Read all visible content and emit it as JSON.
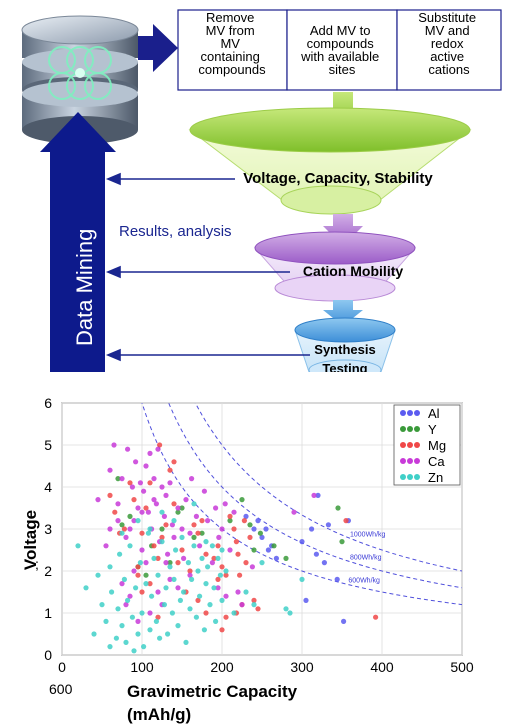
{
  "workflow": {
    "steps": [
      {
        "lines": [
          "Remove",
          "MV from",
          "MV",
          "containing",
          "compounds"
        ]
      },
      {
        "lines": [
          "Add MV to",
          "compounds",
          "with available",
          "sites"
        ]
      },
      {
        "lines": [
          "Substitute",
          "MV and",
          "redox",
          "active",
          "cations"
        ]
      }
    ],
    "funnel_labels": [
      "Voltage, Capacity, Stability",
      "Cation Mobility",
      "Synthesis",
      "Testing"
    ],
    "side_label": "Data Mining",
    "results_label": "Results, analysis",
    "icon": "database-icon"
  },
  "chart_data": {
    "type": "scatter",
    "xlabel": "Gravimetric Capacity (mAh/g)",
    "ylabel": "Voltage",
    "xlim": [
      0,
      500
    ],
    "ylim": [
      0,
      6
    ],
    "xticks": [
      "0",
      "100",
      "200",
      "300",
      "400",
      "500"
    ],
    "yticks": [
      "0",
      "1",
      "2",
      "3",
      "4",
      "5",
      "6"
    ],
    "stray_labels": [
      "600",
      ";"
    ],
    "grid": true,
    "legend_position": "top-right",
    "energy_density_curves": [
      {
        "label": "1000Wh/kg",
        "energy": 1000
      },
      {
        "label": "800Wh/kg",
        "energy": 800
      },
      {
        "label": "600Wh/kg",
        "energy": 600
      }
    ],
    "series": [
      {
        "name": "Al",
        "color": "#5b5bf0",
        "points": [
          [
            245,
            3.2
          ],
          [
            250,
            2.8
          ],
          [
            255,
            3.0
          ],
          [
            258,
            2.5
          ],
          [
            262,
            2.6
          ],
          [
            268,
            2.3
          ],
          [
            300,
            2.7
          ],
          [
            312,
            3.0
          ],
          [
            318,
            2.4
          ],
          [
            320,
            3.8
          ],
          [
            328,
            2.2
          ],
          [
            333,
            3.1
          ],
          [
            344,
            1.8
          ],
          [
            352,
            0.8
          ],
          [
            358,
            3.2
          ],
          [
            305,
            1.3
          ],
          [
            230,
            3.3
          ],
          [
            240,
            3.0
          ]
        ]
      },
      {
        "name": "Y",
        "color": "#3a9a3a",
        "points": [
          [
            70,
            4.2
          ],
          [
            75,
            3.1
          ],
          [
            85,
            3.3
          ],
          [
            95,
            2.1
          ],
          [
            105,
            1.9
          ],
          [
            112,
            2.6
          ],
          [
            125,
            3.0
          ],
          [
            135,
            2.2
          ],
          [
            145,
            3.4
          ],
          [
            150,
            3.5
          ],
          [
            165,
            2.8
          ],
          [
            175,
            2.9
          ],
          [
            210,
            3.2
          ],
          [
            225,
            3.7
          ],
          [
            235,
            3.1
          ],
          [
            240,
            2.5
          ],
          [
            248,
            2.9
          ],
          [
            265,
            2.6
          ],
          [
            280,
            2.3
          ],
          [
            345,
            3.5
          ],
          [
            350,
            2.7
          ]
        ]
      },
      {
        "name": "Mg",
        "color": "#f04848",
        "points": [
          [
            60,
            3.8
          ],
          [
            66,
            3.4
          ],
          [
            72,
            2.9
          ],
          [
            78,
            3.0
          ],
          [
            85,
            4.1
          ],
          [
            90,
            3.7
          ],
          [
            95,
            2.1
          ],
          [
            100,
            2.9
          ],
          [
            105,
            3.5
          ],
          [
            110,
            1.7
          ],
          [
            115,
            2.6
          ],
          [
            120,
            2.3
          ],
          [
            125,
            2.8
          ],
          [
            130,
            3.1
          ],
          [
            140,
            4.6
          ],
          [
            145,
            2.2
          ],
          [
            150,
            2.5
          ],
          [
            155,
            1.5
          ],
          [
            160,
            2.0
          ],
          [
            165,
            3.1
          ],
          [
            170,
            2.9
          ],
          [
            175,
            3.2
          ],
          [
            180,
            2.4
          ],
          [
            190,
            2.3
          ],
          [
            195,
            2.6
          ],
          [
            200,
            2.1
          ],
          [
            205,
            1.9
          ],
          [
            210,
            3.3
          ],
          [
            215,
            3.0
          ],
          [
            218,
            2.7
          ],
          [
            220,
            2.4
          ],
          [
            222,
            1.9
          ],
          [
            225,
            1.2
          ],
          [
            228,
            3.2
          ],
          [
            230,
            2.2
          ],
          [
            235,
            2.8
          ],
          [
            240,
            1.3
          ],
          [
            245,
            1.1
          ],
          [
            200,
            0.6
          ],
          [
            205,
            0.9
          ],
          [
            180,
            1.0
          ],
          [
            170,
            1.3
          ],
          [
            120,
            0.9
          ],
          [
            100,
            1.5
          ],
          [
            95,
            1.9
          ],
          [
            140,
            3.6
          ],
          [
            135,
            4.4
          ],
          [
            110,
            4.1
          ],
          [
            122,
            5.0
          ],
          [
            355,
            3.2
          ],
          [
            392,
            0.9
          ],
          [
            218,
            1.0
          ],
          [
            195,
            1.8
          ]
        ]
      },
      {
        "name": "Ca",
        "color": "#c83ad8",
        "points": [
          [
            45,
            3.7
          ],
          [
            55,
            2.6
          ],
          [
            60,
            4.4
          ],
          [
            65,
            5.0
          ],
          [
            70,
            3.6
          ],
          [
            75,
            4.2
          ],
          [
            80,
            2.8
          ],
          [
            82,
            4.9
          ],
          [
            88,
            4.0
          ],
          [
            90,
            3.2
          ],
          [
            92,
            4.6
          ],
          [
            95,
            3.5
          ],
          [
            98,
            4.1
          ],
          [
            100,
            2.5
          ],
          [
            102,
            3.9
          ],
          [
            105,
            4.5
          ],
          [
            108,
            3.4
          ],
          [
            110,
            4.8
          ],
          [
            112,
            3.0
          ],
          [
            115,
            4.2
          ],
          [
            118,
            3.6
          ],
          [
            120,
            4.9
          ],
          [
            122,
            2.7
          ],
          [
            125,
            4.0
          ],
          [
            128,
            3.3
          ],
          [
            130,
            3.8
          ],
          [
            132,
            2.4
          ],
          [
            135,
            4.1
          ],
          [
            138,
            3.1
          ],
          [
            140,
            2.8
          ],
          [
            145,
            3.5
          ],
          [
            150,
            3.0
          ],
          [
            152,
            2.3
          ],
          [
            155,
            3.7
          ],
          [
            160,
            2.9
          ],
          [
            162,
            4.2
          ],
          [
            168,
            3.3
          ],
          [
            172,
            2.6
          ],
          [
            178,
            3.9
          ],
          [
            182,
            3.2
          ],
          [
            188,
            2.2
          ],
          [
            192,
            3.5
          ],
          [
            196,
            2.8
          ],
          [
            200,
            3.0
          ],
          [
            204,
            3.6
          ],
          [
            210,
            2.5
          ],
          [
            215,
            3.4
          ],
          [
            220,
            1.5
          ],
          [
            225,
            1.2
          ],
          [
            75,
            1.7
          ],
          [
            80,
            1.2
          ],
          [
            85,
            1.4
          ],
          [
            90,
            2.0
          ],
          [
            95,
            0.8
          ],
          [
            110,
            1.0
          ],
          [
            120,
            1.5
          ],
          [
            135,
            1.8
          ],
          [
            145,
            1.6
          ],
          [
            160,
            1.9
          ],
          [
            195,
            1.6
          ],
          [
            205,
            1.4
          ],
          [
            238,
            2.1
          ],
          [
            290,
            3.4
          ],
          [
            315,
            3.8
          ],
          [
            85,
            3.0
          ],
          [
            100,
            3.4
          ],
          [
            115,
            3.7
          ],
          [
            130,
            2.2
          ],
          [
            70,
            3.2
          ],
          [
            60,
            3.0
          ],
          [
            105,
            2.2
          ],
          [
            125,
            1.2
          ]
        ]
      },
      {
        "name": "Zn",
        "color": "#40d0c8",
        "points": [
          [
            20,
            2.6
          ],
          [
            30,
            1.6
          ],
          [
            40,
            0.5
          ],
          [
            45,
            1.9
          ],
          [
            50,
            1.2
          ],
          [
            55,
            0.8
          ],
          [
            60,
            2.1
          ],
          [
            62,
            1.5
          ],
          [
            68,
            0.4
          ],
          [
            70,
            1.1
          ],
          [
            72,
            2.4
          ],
          [
            75,
            0.7
          ],
          [
            78,
            1.8
          ],
          [
            80,
            0.3
          ],
          [
            82,
            1.3
          ],
          [
            85,
            2.6
          ],
          [
            88,
            0.9
          ],
          [
            90,
            0.1
          ],
          [
            92,
            1.6
          ],
          [
            95,
            0.5
          ],
          [
            98,
            2.2
          ],
          [
            100,
            1.0
          ],
          [
            102,
            0.2
          ],
          [
            105,
            1.7
          ],
          [
            108,
            2.9
          ],
          [
            110,
            0.6
          ],
          [
            112,
            1.4
          ],
          [
            115,
            2.3
          ],
          [
            118,
            0.8
          ],
          [
            120,
            1.9
          ],
          [
            122,
            0.4
          ],
          [
            125,
            2.7
          ],
          [
            128,
            1.2
          ],
          [
            130,
            1.6
          ],
          [
            132,
            0.5
          ],
          [
            135,
            2.1
          ],
          [
            138,
            1.0
          ],
          [
            140,
            1.8
          ],
          [
            142,
            2.5
          ],
          [
            145,
            0.7
          ],
          [
            148,
            1.3
          ],
          [
            150,
            2.8
          ],
          [
            152,
            1.5
          ],
          [
            155,
            0.3
          ],
          [
            158,
            2.2
          ],
          [
            160,
            1.1
          ],
          [
            162,
            1.8
          ],
          [
            165,
            2.6
          ],
          [
            168,
            0.9
          ],
          [
            170,
            2.0
          ],
          [
            172,
            1.4
          ],
          [
            175,
            2.3
          ],
          [
            178,
            0.6
          ],
          [
            180,
            1.7
          ],
          [
            182,
            2.1
          ],
          [
            185,
            1.2
          ],
          [
            188,
            2.6
          ],
          [
            190,
            1.6
          ],
          [
            192,
            0.8
          ],
          [
            195,
            2.3
          ],
          [
            198,
            1.9
          ],
          [
            200,
            1.3
          ],
          [
            205,
            2.0
          ],
          [
            215,
            1.0
          ],
          [
            230,
            1.5
          ],
          [
            240,
            1.2
          ],
          [
            250,
            2.2
          ],
          [
            280,
            1.1
          ],
          [
            285,
            1.0
          ],
          [
            300,
            1.8
          ],
          [
            60,
            0.2
          ],
          [
            75,
            2.9
          ],
          [
            95,
            3.2
          ],
          [
            110,
            3.0
          ],
          [
            125,
            3.4
          ],
          [
            140,
            3.2
          ],
          [
            165,
            3.6
          ],
          [
            180,
            2.7
          ],
          [
            200,
            2.5
          ]
        ]
      }
    ]
  }
}
